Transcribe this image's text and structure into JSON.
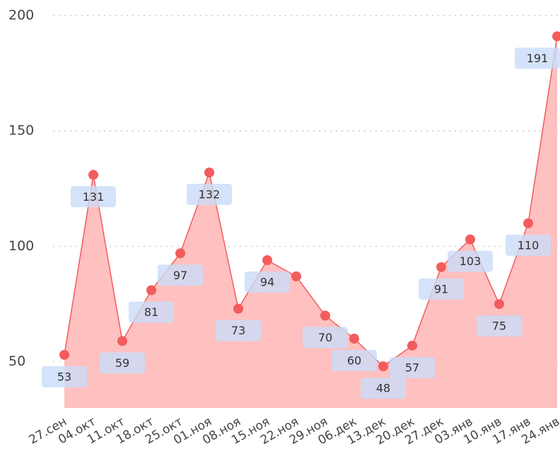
{
  "chart_data": {
    "type": "area",
    "categories": [
      "27.сен",
      "04.окт",
      "11.окт",
      "18.окт",
      "25.окт",
      "01.ноя",
      "08.ноя",
      "15.ноя",
      "22.ноя",
      "29.ноя",
      "06.дек",
      "13.дек",
      "20.дек",
      "27.дек",
      "03.янв",
      "10.янв",
      "17.янв",
      "24.янв"
    ],
    "series": [
      {
        "color": "#f25c5c",
        "values": [
          53,
          131,
          59,
          81,
          97,
          132,
          73,
          94,
          87,
          70,
          60,
          48,
          57,
          91,
          103,
          75,
          110,
          191
        ],
        "value_labels": [
          "53",
          "131",
          "59",
          "81",
          "97",
          "132",
          "73",
          "94",
          null,
          "70",
          "60",
          "48",
          "57",
          "91",
          "103",
          "75",
          "110",
          "191"
        ]
      }
    ],
    "ylim": [
      30,
      200
    ],
    "yticks": [
      50,
      100,
      150,
      200
    ],
    "grid": true
  }
}
